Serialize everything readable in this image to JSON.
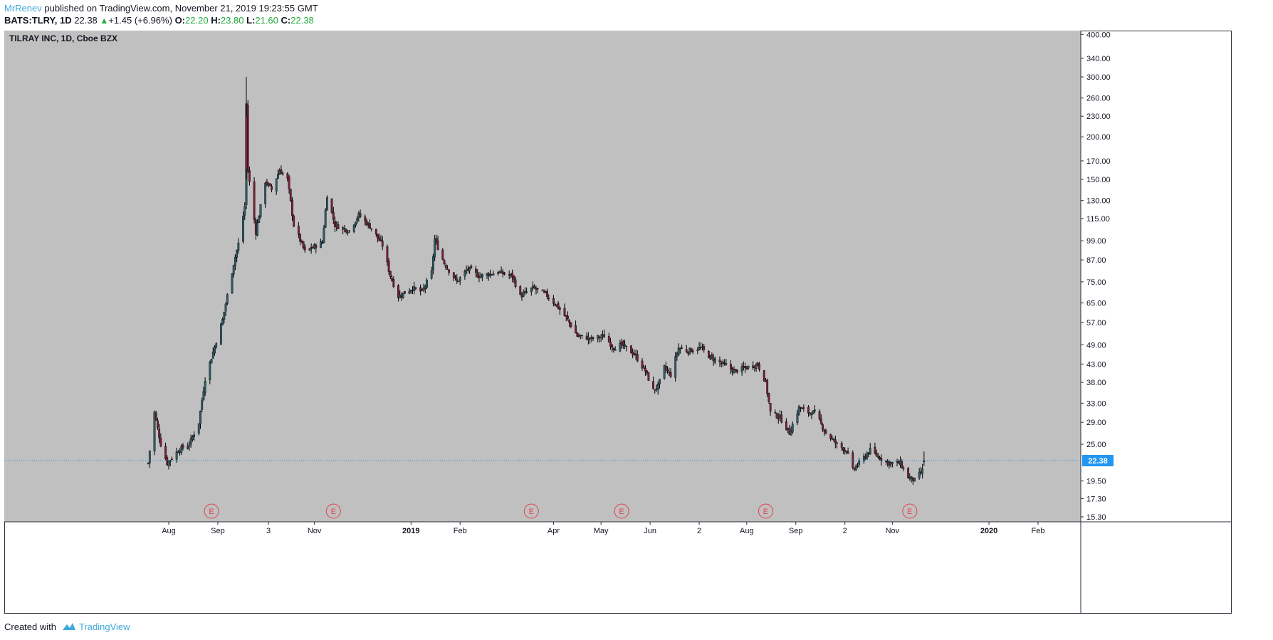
{
  "header": {
    "author": "MrRenev",
    "published": "published on TradingView.com, November 21, 2019 19:23:55 GMT",
    "symbol": "BATS:TLRY, 1D",
    "last": "22.38",
    "change": "+1.45 (+6.96%)",
    "o_label": "O:",
    "o_value": "22.20",
    "h_label": "H:",
    "h_value": "23.80",
    "l_label": "L:",
    "l_value": "21.60",
    "c_label": "C:",
    "c_value": "22.38"
  },
  "footer": {
    "created_with": "Created with",
    "brand": "TradingView"
  },
  "colors": {
    "background": "#c0c0c0",
    "up_body": "#2e5c66",
    "down_body": "#7a1f36",
    "wick": "#000000",
    "price_line": "#2196f3",
    "price_tag": "#2196f3",
    "earnings_marker": "#e0434f"
  },
  "chart_data": {
    "type": "candlestick",
    "title": "TILRAY INC, 1D, Cboe BZX",
    "last_price_label": "22.38",
    "y_scale": "log",
    "y_ticks": [
      "400.00",
      "340.00",
      "300.00",
      "260.00",
      "230.00",
      "200.00",
      "170.00",
      "150.00",
      "130.00",
      "115.00",
      "99.00",
      "87.00",
      "75.00",
      "65.00",
      "57.00",
      "49.00",
      "43.00",
      "38.00",
      "33.00",
      "29.00",
      "25.00",
      "19.50",
      "17.30",
      "15.30"
    ],
    "x_ticks": [
      {
        "label": "Aug",
        "date": "2018-08-01",
        "bold": false
      },
      {
        "label": "Sep",
        "date": "2018-09-01",
        "bold": false
      },
      {
        "label": "3",
        "date": "2018-10-03",
        "bold": false
      },
      {
        "label": "Nov",
        "date": "2018-11-01",
        "bold": false
      },
      {
        "label": "2019",
        "date": "2019-01-01",
        "bold": true
      },
      {
        "label": "Feb",
        "date": "2019-02-01",
        "bold": false
      },
      {
        "label": "Apr",
        "date": "2019-04-01",
        "bold": false
      },
      {
        "label": "May",
        "date": "2019-05-01",
        "bold": false
      },
      {
        "label": "Jun",
        "date": "2019-06-01",
        "bold": false
      },
      {
        "label": "2",
        "date": "2019-07-02",
        "bold": false
      },
      {
        "label": "Aug",
        "date": "2019-08-01",
        "bold": false
      },
      {
        "label": "Sep",
        "date": "2019-09-01",
        "bold": false
      },
      {
        "label": "2",
        "date": "2019-10-02",
        "bold": false
      },
      {
        "label": "Nov",
        "date": "2019-11-01",
        "bold": false
      },
      {
        "label": "2020",
        "date": "2020-01-01",
        "bold": true
      },
      {
        "label": "Feb",
        "date": "2020-02-01",
        "bold": false
      }
    ],
    "earnings_markers": [
      {
        "label": "E",
        "date": "2018-08-28"
      },
      {
        "label": "E",
        "date": "2018-11-13"
      },
      {
        "label": "E",
        "date": "2019-03-18"
      },
      {
        "label": "E",
        "date": "2019-05-14"
      },
      {
        "label": "E",
        "date": "2019-08-13"
      },
      {
        "label": "E",
        "date": "2019-11-12"
      }
    ],
    "close_path": [
      {
        "date": "2018-07-19",
        "close": 22
      },
      {
        "date": "2018-07-23",
        "close": 31
      },
      {
        "date": "2018-07-27",
        "close": 25
      },
      {
        "date": "2018-07-31",
        "close": 22
      },
      {
        "date": "2018-08-07",
        "close": 24
      },
      {
        "date": "2018-08-14",
        "close": 25
      },
      {
        "date": "2018-08-20",
        "close": 29
      },
      {
        "date": "2018-08-24",
        "close": 39
      },
      {
        "date": "2018-08-28",
        "close": 45
      },
      {
        "date": "2018-09-04",
        "close": 58
      },
      {
        "date": "2018-09-11",
        "close": 85
      },
      {
        "date": "2018-09-14",
        "close": 97
      },
      {
        "date": "2018-09-18",
        "close": 125
      },
      {
        "date": "2018-09-19",
        "close": 250
      },
      {
        "date": "2018-09-20",
        "close": 160
      },
      {
        "date": "2018-09-25",
        "close": 105
      },
      {
        "date": "2018-10-01",
        "close": 148
      },
      {
        "date": "2018-10-05",
        "close": 140
      },
      {
        "date": "2018-10-10",
        "close": 160
      },
      {
        "date": "2018-10-15",
        "close": 150
      },
      {
        "date": "2018-10-19",
        "close": 110
      },
      {
        "date": "2018-10-26",
        "close": 92
      },
      {
        "date": "2018-11-06",
        "close": 98
      },
      {
        "date": "2018-11-09",
        "close": 135
      },
      {
        "date": "2018-11-14",
        "close": 110
      },
      {
        "date": "2018-11-23",
        "close": 106
      },
      {
        "date": "2018-11-29",
        "close": 118
      },
      {
        "date": "2018-12-07",
        "close": 108
      },
      {
        "date": "2018-12-14",
        "close": 96
      },
      {
        "date": "2018-12-19",
        "close": 78
      },
      {
        "date": "2018-12-24",
        "close": 68
      },
      {
        "date": "2019-01-02",
        "close": 72
      },
      {
        "date": "2019-01-08",
        "close": 70
      },
      {
        "date": "2019-01-14",
        "close": 80
      },
      {
        "date": "2019-01-16",
        "close": 100
      },
      {
        "date": "2019-01-22",
        "close": 85
      },
      {
        "date": "2019-01-30",
        "close": 75
      },
      {
        "date": "2019-02-06",
        "close": 82
      },
      {
        "date": "2019-02-13",
        "close": 78
      },
      {
        "date": "2019-02-25",
        "close": 80
      },
      {
        "date": "2019-03-06",
        "close": 78
      },
      {
        "date": "2019-03-11",
        "close": 68
      },
      {
        "date": "2019-03-19",
        "close": 72
      },
      {
        "date": "2019-03-27",
        "close": 69
      },
      {
        "date": "2019-04-03",
        "close": 64
      },
      {
        "date": "2019-04-10",
        "close": 58
      },
      {
        "date": "2019-04-16",
        "close": 52
      },
      {
        "date": "2019-04-25",
        "close": 51
      },
      {
        "date": "2019-05-03",
        "close": 52
      },
      {
        "date": "2019-05-09",
        "close": 48
      },
      {
        "date": "2019-05-14",
        "close": 49
      },
      {
        "date": "2019-05-22",
        "close": 46
      },
      {
        "date": "2019-05-29",
        "close": 41
      },
      {
        "date": "2019-06-03",
        "close": 36
      },
      {
        "date": "2019-06-06",
        "close": 37
      },
      {
        "date": "2019-06-10",
        "close": 42
      },
      {
        "date": "2019-06-14",
        "close": 40
      },
      {
        "date": "2019-06-19",
        "close": 48
      },
      {
        "date": "2019-06-25",
        "close": 47
      },
      {
        "date": "2019-07-03",
        "close": 48
      },
      {
        "date": "2019-07-09",
        "close": 45
      },
      {
        "date": "2019-07-17",
        "close": 43
      },
      {
        "date": "2019-07-24",
        "close": 41
      },
      {
        "date": "2019-08-01",
        "close": 42
      },
      {
        "date": "2019-08-08",
        "close": 43
      },
      {
        "date": "2019-08-13",
        "close": 38
      },
      {
        "date": "2019-08-16",
        "close": 31
      },
      {
        "date": "2019-08-22",
        "close": 30
      },
      {
        "date": "2019-08-28",
        "close": 27
      },
      {
        "date": "2019-09-03",
        "close": 32
      },
      {
        "date": "2019-09-09",
        "close": 31
      },
      {
        "date": "2019-09-13",
        "close": 31
      },
      {
        "date": "2019-09-20",
        "close": 27
      },
      {
        "date": "2019-09-27",
        "close": 25
      },
      {
        "date": "2019-10-03",
        "close": 24
      },
      {
        "date": "2019-10-07",
        "close": 21
      },
      {
        "date": "2019-10-11",
        "close": 22
      },
      {
        "date": "2019-10-18",
        "close": 24
      },
      {
        "date": "2019-10-23",
        "close": 23
      },
      {
        "date": "2019-10-30",
        "close": 22
      },
      {
        "date": "2019-11-06",
        "close": 22
      },
      {
        "date": "2019-11-11",
        "close": 20
      },
      {
        "date": "2019-11-15",
        "close": 19.6
      },
      {
        "date": "2019-11-20",
        "close": 20.93
      }
    ],
    "last_candle": {
      "date": "2019-11-21",
      "open": 22.2,
      "high": 23.8,
      "low": 21.6,
      "close": 22.38
    },
    "extremes": {
      "high": 300,
      "high_date": "2018-09-19",
      "low": 19.5,
      "first_low": 20.1
    }
  }
}
